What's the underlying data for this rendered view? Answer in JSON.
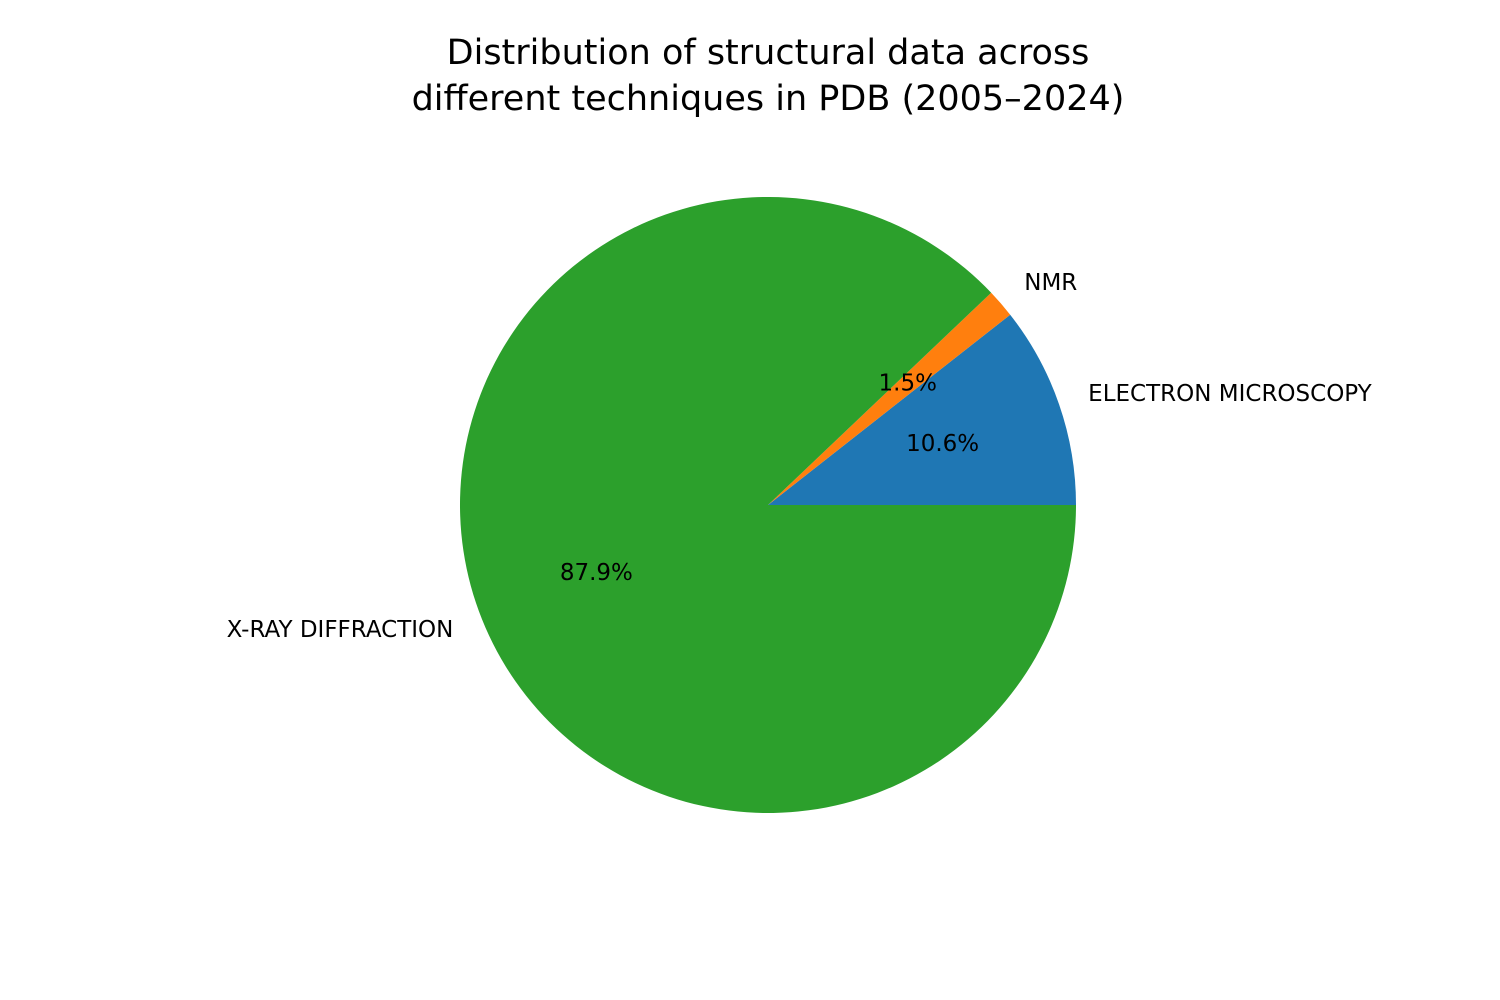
{
  "chart_data": {
    "type": "pie",
    "title_lines": [
      "Distribution of structural data across",
      "different techniques in PDB (2005–2024)"
    ],
    "start_angle": 0,
    "direction": "counterclockwise",
    "slices": [
      {
        "label": "ELECTRON MICROSCOPY",
        "value": 10.6,
        "pct_label": "10.6%",
        "color": "#1f77b4"
      },
      {
        "label": "NMR",
        "value": 1.5,
        "pct_label": "1.5%",
        "color": "#ff7f0e"
      },
      {
        "label": "X-RAY DIFFRACTION",
        "value": 87.9,
        "pct_label": "87.9%",
        "color": "#2ca02c"
      }
    ]
  }
}
